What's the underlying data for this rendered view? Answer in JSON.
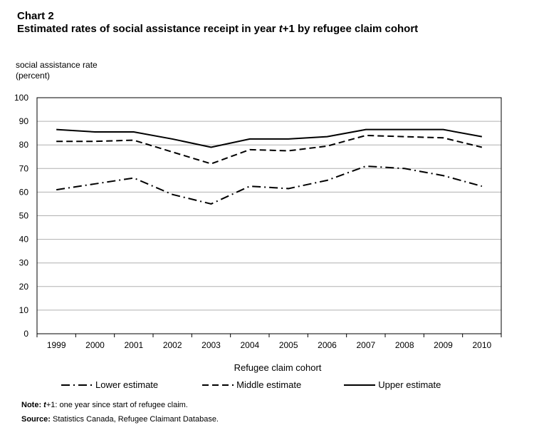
{
  "header": {
    "chart_number": "Chart 2",
    "title_part1": "Estimated rates of social assistance receipt in year ",
    "title_italic": "t",
    "title_part2": "+1 by refugee claim cohort"
  },
  "notes": {
    "note_label": "Note:",
    "note_italic": "t",
    "note_text": "+1: one year since start of refugee claim.",
    "source_label": "Source:",
    "source_text": "Statistics Canada, Refugee Claimant Database."
  },
  "chart_data": {
    "type": "line",
    "title": "Estimated rates of social assistance receipt in year t+1 by refugee claim cohort",
    "xlabel": "Refugee claim cohort",
    "ylabel": "social assistance rate (percent)",
    "ylim": [
      0,
      100
    ],
    "yticks": [
      "0",
      "10",
      "20",
      "30",
      "40",
      "50",
      "60",
      "70",
      "80",
      "90",
      "100"
    ],
    "categories": [
      "1999",
      "2000",
      "2001",
      "2002",
      "2003",
      "2004",
      "2005",
      "2006",
      "2007",
      "2008",
      "2009",
      "2010"
    ],
    "series": [
      {
        "name": "Lower estimate",
        "style": "dashdot",
        "color": "#000000",
        "values": [
          61,
          63.5,
          66,
          59,
          55,
          62.5,
          61.5,
          65,
          71,
          70,
          67,
          62.5
        ]
      },
      {
        "name": "Middle estimate",
        "style": "dashed",
        "color": "#000000",
        "values": [
          81.5,
          81.5,
          82,
          77,
          72,
          78,
          77.5,
          79.5,
          84,
          83.5,
          83,
          79
        ]
      },
      {
        "name": "Upper estimate",
        "style": "solid",
        "color": "#000000",
        "values": [
          86.5,
          85.5,
          85.5,
          82.5,
          79,
          82.5,
          82.5,
          83.5,
          86.5,
          86.5,
          86.5,
          83.5
        ]
      }
    ],
    "grid": true,
    "legend": "bottom"
  }
}
